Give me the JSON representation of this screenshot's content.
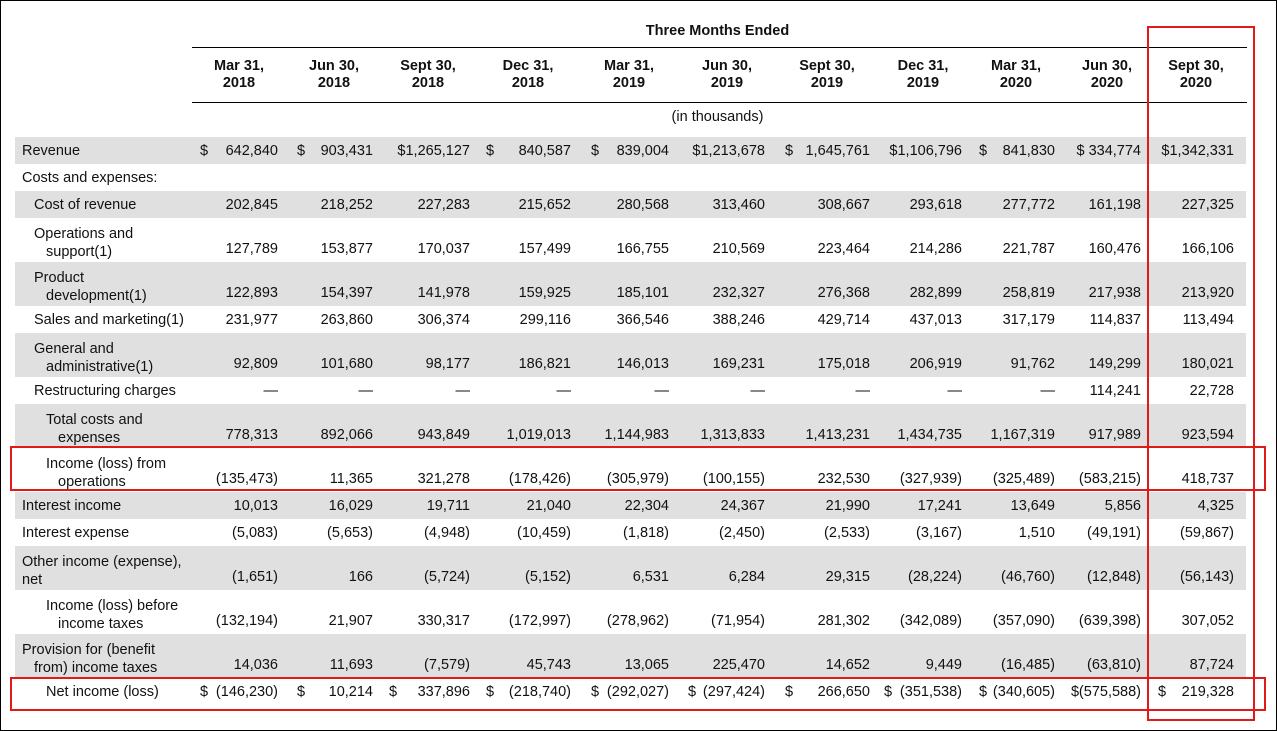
{
  "header": {
    "title": "Three Months Ended",
    "unit_note": "(in thousands)",
    "periods": [
      {
        "l1": "Mar 31,",
        "l2": "2018"
      },
      {
        "l1": "Jun 30,",
        "l2": "2018"
      },
      {
        "l1": "Sept 30,",
        "l2": "2018"
      },
      {
        "l1": "Dec 31,",
        "l2": "2018"
      },
      {
        "l1": "Mar 31,",
        "l2": "2019"
      },
      {
        "l1": "Jun 30,",
        "l2": "2019"
      },
      {
        "l1": "Sept 30,",
        "l2": "2019"
      },
      {
        "l1": "Dec 31,",
        "l2": "2019"
      },
      {
        "l1": "Mar 31,",
        "l2": "2020"
      },
      {
        "l1": "Jun 30,",
        "l2": "2020"
      },
      {
        "l1": "Sept 30,",
        "l2": "2020"
      }
    ]
  },
  "rows": [
    {
      "label": [
        "Revenue"
      ],
      "shade": true,
      "values": [
        "642,840",
        "903,431",
        "$1,265,127",
        "840,587",
        "839,004",
        "$1,213,678",
        "1,645,761",
        "$1,106,796",
        "841,830",
        "$ 334,774",
        "$1,342,331"
      ],
      "currency": [
        "$",
        "$",
        "",
        "$",
        "$",
        "",
        "$",
        "",
        "$",
        "",
        ""
      ]
    },
    {
      "label": [
        "Costs and expenses:"
      ],
      "shade": false,
      "values": [],
      "currency": []
    },
    {
      "label": [
        "Cost of revenue"
      ],
      "shade": true,
      "values": [
        "202,845",
        "218,252",
        "227,283",
        "215,652",
        "280,568",
        "313,460",
        "308,667",
        "293,618",
        "277,772",
        "161,198",
        "227,325"
      ],
      "currency": []
    },
    {
      "label": [
        "Operations and",
        "support(1)"
      ],
      "shade": false,
      "values": [
        "127,789",
        "153,877",
        "170,037",
        "157,499",
        "166,755",
        "210,569",
        "223,464",
        "214,286",
        "221,787",
        "160,476",
        "166,106"
      ],
      "currency": []
    },
    {
      "label": [
        "Product",
        "development(1)"
      ],
      "shade": true,
      "values": [
        "122,893",
        "154,397",
        "141,978",
        "159,925",
        "185,101",
        "232,327",
        "276,368",
        "282,899",
        "258,819",
        "217,938",
        "213,920"
      ],
      "currency": []
    },
    {
      "label": [
        "Sales and marketing(1)"
      ],
      "shade": false,
      "values": [
        "231,977",
        "263,860",
        "306,374",
        "299,116",
        "366,546",
        "388,246",
        "429,714",
        "437,013",
        "317,179",
        "114,837",
        "113,494"
      ],
      "currency": []
    },
    {
      "label": [
        "General and",
        "administrative(1)"
      ],
      "shade": true,
      "values": [
        "92,809",
        "101,680",
        "98,177",
        "186,821",
        "146,013",
        "169,231",
        "175,018",
        "206,919",
        "91,762",
        "149,299",
        "180,021"
      ],
      "currency": []
    },
    {
      "label": [
        "Restructuring charges"
      ],
      "shade": false,
      "values": [
        "—",
        "—",
        "—",
        "—",
        "—",
        "—",
        "—",
        "—",
        "—",
        "114,241",
        "22,728"
      ],
      "currency": []
    },
    {
      "label": [
        "Total costs and",
        "expenses"
      ],
      "shade": true,
      "values": [
        "778,313",
        "892,066",
        "943,849",
        "1,019,013",
        "1,144,983",
        "1,313,833",
        "1,413,231",
        "1,434,735",
        "1,167,319",
        "917,989",
        "923,594"
      ],
      "currency": []
    },
    {
      "label": [
        "Income (loss) from",
        "operations"
      ],
      "shade": false,
      "values": [
        "(135,473)",
        "11,365",
        "321,278",
        "(178,426)",
        "(305,979)",
        "(100,155)",
        "232,530",
        "(327,939)",
        "(325,489)",
        "(583,215)",
        "418,737"
      ],
      "currency": []
    },
    {
      "label": [
        "Interest income"
      ],
      "shade": true,
      "values": [
        "10,013",
        "16,029",
        "19,711",
        "21,040",
        "22,304",
        "24,367",
        "21,990",
        "17,241",
        "13,649",
        "5,856",
        "4,325"
      ],
      "currency": []
    },
    {
      "label": [
        "Interest expense"
      ],
      "shade": false,
      "values": [
        "(5,083)",
        "(5,653)",
        "(4,948)",
        "(10,459)",
        "(1,818)",
        "(2,450)",
        "(2,533)",
        "(3,167)",
        "1,510",
        "(49,191)",
        "(59,867)"
      ],
      "currency": []
    },
    {
      "label": [
        "Other income (expense),",
        "net"
      ],
      "shade": true,
      "values": [
        "(1,651)",
        "166",
        "(5,724)",
        "(5,152)",
        "6,531",
        "6,284",
        "29,315",
        "(28,224)",
        "(46,760)",
        "(12,848)",
        "(56,143)"
      ],
      "currency": []
    },
    {
      "label": [
        "Income (loss) before",
        "income taxes"
      ],
      "shade": false,
      "values": [
        "(132,194)",
        "21,907",
        "330,317",
        "(172,997)",
        "(278,962)",
        "(71,954)",
        "281,302",
        "(342,089)",
        "(357,090)",
        "(639,398)",
        "307,052"
      ],
      "currency": []
    },
    {
      "label": [
        "Provision for (benefit",
        "from) income taxes"
      ],
      "shade": true,
      "values": [
        "14,036",
        "11,693",
        "(7,579)",
        "45,743",
        "13,065",
        "225,470",
        "14,652",
        "9,449",
        "(16,485)",
        "(63,810)",
        "87,724"
      ],
      "currency": []
    },
    {
      "label": [
        "Net income (loss)"
      ],
      "shade": false,
      "values": [
        "(146,230)",
        "10,214",
        "337,896",
        "(218,740)",
        "(292,027)",
        "(297,424)",
        "266,650",
        "(351,538)",
        "(340,605)",
        "(575,588)",
        "219,328"
      ],
      "currency": [
        "$",
        "$",
        "$",
        "$",
        "$",
        "$",
        "$",
        "$",
        "$",
        "$",
        "$"
      ]
    }
  ],
  "colors": {
    "highlight": "#e01919",
    "shade": "#e0e0e0"
  }
}
